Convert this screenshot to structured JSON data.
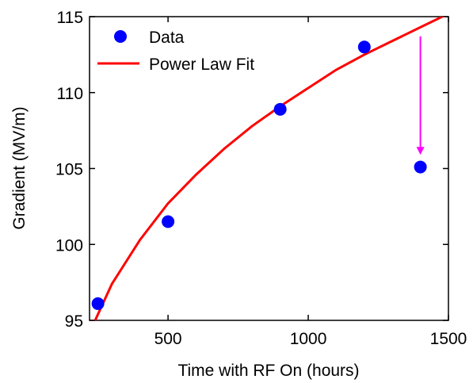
{
  "chart_data": {
    "type": "scatter",
    "title": "",
    "xlabel": "Time with RF On (hours)",
    "ylabel": "Gradient (MV/m)",
    "xlim": [
      220,
      1500
    ],
    "ylim": [
      95,
      115
    ],
    "xticks": [
      500,
      1000,
      1500
    ],
    "yticks": [
      95,
      100,
      105,
      110,
      115
    ],
    "grid": false,
    "legend_position": "top-left",
    "legend": [
      {
        "label": "Data",
        "marker": "circle",
        "color": "#0000ff"
      },
      {
        "label": "Power Law Fit",
        "marker": "line",
        "color": "#ff0000"
      }
    ],
    "series": [
      {
        "name": "Data",
        "kind": "scatter",
        "color": "#0000ff",
        "x": [
          250,
          500,
          900,
          1200,
          1400
        ],
        "y": [
          96.1,
          101.5,
          108.9,
          113.0,
          105.1
        ]
      },
      {
        "name": "Power Law Fit",
        "kind": "line",
        "color": "#ff0000",
        "x": [
          240,
          300,
          400,
          500,
          600,
          700,
          800,
          900,
          1000,
          1100,
          1200,
          1300,
          1400,
          1500
        ],
        "y": [
          95.0,
          97.4,
          100.3,
          102.7,
          104.6,
          106.3,
          107.8,
          109.1,
          110.3,
          111.5,
          112.5,
          113.4,
          114.3,
          115.2
        ]
      }
    ],
    "annotations": [
      {
        "type": "arrow",
        "color": "#ff00ff",
        "x_from": 1400,
        "y_from": 113.7,
        "x_to": 1400,
        "y_to": 105.9
      }
    ]
  }
}
